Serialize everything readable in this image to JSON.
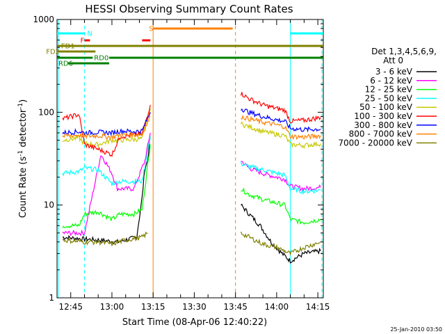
{
  "chart_data": {
    "type": "line",
    "title": "HESSI Observing Summary Count Rates",
    "xlabel": "Start Time (08-Apr-06 12:40:22)",
    "ylabel_main": "Count Rate (s",
    "ylabel_sup": "-1",
    "ylabel_rest": " detector",
    "ylabel_sup2": "-1",
    "ylabel_close": ")",
    "yscale": "log",
    "ylim": [
      1,
      1000
    ],
    "xlim": [
      "12:40",
      "14:17"
    ],
    "yticks": [
      {
        "value": 1,
        "label": "1"
      },
      {
        "value": 10,
        "label": "10"
      },
      {
        "value": 100,
        "label": "100"
      },
      {
        "value": 1000,
        "label": "1000"
      }
    ],
    "xticks": [
      {
        "value": "12:45",
        "label": "12:45"
      },
      {
        "value": "13:00",
        "label": "13:00"
      },
      {
        "value": "13:15",
        "label": "13:15"
      },
      {
        "value": "13:30",
        "label": "13:30"
      },
      {
        "value": "13:45",
        "label": "13:45"
      },
      {
        "value": "14:00",
        "label": "14:00"
      },
      {
        "value": "14:15",
        "label": "14:15"
      }
    ],
    "legend": {
      "placement": "right",
      "header_line1": "Det 1,3,4,5,6,9,",
      "header_line2": "Att 0"
    },
    "series": [
      {
        "name": "3 - 6 keV",
        "color": "#000000",
        "segments": [
          [
            [
              "12:42",
              4.5
            ],
            [
              "12:50",
              4.3
            ],
            [
              "12:55",
              4.2
            ],
            [
              "13:02",
              4.0
            ],
            [
              "13:09",
              4.5
            ],
            [
              "13:11",
              12
            ],
            [
              "13:12",
              25
            ],
            [
              "13:13",
              30
            ],
            [
              "13:14",
              55
            ]
          ],
          [
            [
              "13:47",
              10
            ],
            [
              "13:50",
              8
            ],
            [
              "13:54",
              6
            ],
            [
              "13:58",
              4
            ],
            [
              "14:02",
              3
            ],
            [
              "14:05",
              2.5
            ],
            [
              "14:10",
              3
            ],
            [
              "14:16",
              3.2
            ]
          ]
        ]
      },
      {
        "name": "6 - 12 keV",
        "color": "#ff00ff",
        "segments": [
          [
            [
              "12:42",
              5
            ],
            [
              "12:50",
              5
            ],
            [
              "12:56",
              35
            ],
            [
              "12:58",
              28
            ],
            [
              "13:00",
              22
            ],
            [
              "13:02",
              15
            ],
            [
              "13:08",
              15
            ],
            [
              "13:12",
              30
            ],
            [
              "13:14",
              60
            ]
          ],
          [
            [
              "13:47",
              30
            ],
            [
              "13:50",
              25
            ],
            [
              "13:55",
              22
            ],
            [
              "14:00",
              20
            ],
            [
              "14:03",
              19
            ],
            [
              "14:05",
              16
            ],
            [
              "14:10",
              15
            ],
            [
              "14:16",
              15.5
            ]
          ]
        ]
      },
      {
        "name": "12 - 25 keV",
        "color": "#00ff00",
        "segments": [
          [
            [
              "12:42",
              6
            ],
            [
              "12:48",
              6
            ],
            [
              "12:50",
              8
            ],
            [
              "12:55",
              8.5
            ],
            [
              "13:00",
              7
            ],
            [
              "13:03",
              8
            ],
            [
              "13:08",
              8
            ],
            [
              "13:11",
              9
            ],
            [
              "13:14",
              45
            ]
          ],
          [
            [
              "13:47",
              15
            ],
            [
              "13:50",
              13
            ],
            [
              "13:55",
              11.5
            ],
            [
              "14:00",
              10.5
            ],
            [
              "14:03",
              10
            ],
            [
              "14:05",
              7
            ],
            [
              "14:10",
              6.5
            ],
            [
              "14:16",
              7
            ]
          ]
        ]
      },
      {
        "name": "25 - 50 keV",
        "color": "#00ffff",
        "segments": [
          [
            [
              "12:42",
              22
            ],
            [
              "12:48",
              23
            ],
            [
              "12:50",
              25
            ],
            [
              "12:55",
              24
            ],
            [
              "13:00",
              17
            ],
            [
              "13:03",
              18
            ],
            [
              "13:08",
              18
            ],
            [
              "13:11",
              18
            ],
            [
              "13:14",
              55
            ]
          ],
          [
            [
              "13:47",
              28
            ],
            [
              "13:50",
              26
            ],
            [
              "13:55",
              24
            ],
            [
              "14:00",
              22
            ],
            [
              "14:03",
              21
            ],
            [
              "14:05",
              15
            ],
            [
              "14:10",
              14
            ],
            [
              "14:16",
              14.5
            ]
          ]
        ]
      },
      {
        "name": "50 - 100 keV",
        "color": "#c8c800",
        "segments": [
          [
            [
              "12:42",
              50
            ],
            [
              "12:48",
              53
            ],
            [
              "12:50",
              46
            ],
            [
              "12:55",
              45
            ],
            [
              "13:00",
              50
            ],
            [
              "13:03",
              50
            ],
            [
              "13:08",
              51
            ],
            [
              "13:11",
              52
            ],
            [
              "13:14",
              110
            ]
          ],
          [
            [
              "13:47",
              75
            ],
            [
              "13:50",
              70
            ],
            [
              "13:55",
              62
            ],
            [
              "14:00",
              58
            ],
            [
              "14:03",
              56
            ],
            [
              "14:05",
              45
            ],
            [
              "14:10",
              44
            ],
            [
              "14:16",
              46
            ]
          ]
        ]
      },
      {
        "name": "100 - 300 keV",
        "color": "#ff0000",
        "segments": [
          [
            [
              "12:42",
              85
            ],
            [
              "12:48",
              95
            ],
            [
              "12:50",
              45
            ],
            [
              "12:55",
              40
            ],
            [
              "13:00",
              35
            ],
            [
              "13:03",
              55
            ],
            [
              "13:08",
              57
            ],
            [
              "13:11",
              58
            ],
            [
              "13:14",
              120
            ]
          ],
          [
            [
              "13:47",
              160
            ],
            [
              "13:50",
              140
            ],
            [
              "13:55",
              120
            ],
            [
              "14:00",
              110
            ],
            [
              "14:03",
              105
            ],
            [
              "14:05",
              80
            ],
            [
              "14:10",
              82
            ],
            [
              "14:16",
              88
            ]
          ]
        ]
      },
      {
        "name": "300 - 800 keV",
        "color": "#0000ff",
        "segments": [
          [
            [
              "12:42",
              60
            ],
            [
              "12:48",
              62
            ],
            [
              "12:50",
              60
            ],
            [
              "12:55",
              61
            ],
            [
              "13:00",
              60
            ],
            [
              "13:03",
              63
            ],
            [
              "13:08",
              62
            ],
            [
              "13:11",
              63
            ],
            [
              "13:14",
              100
            ]
          ],
          [
            [
              "13:47",
              110
            ],
            [
              "13:50",
              100
            ],
            [
              "13:55",
              90
            ],
            [
              "14:00",
              83
            ],
            [
              "14:03",
              80
            ],
            [
              "14:05",
              67
            ],
            [
              "14:10",
              65
            ],
            [
              "14:16",
              66
            ]
          ]
        ]
      },
      {
        "name": "800 - 7000 keV",
        "color": "#ff8000",
        "segments": [
          [
            [
              "12:42",
              55
            ],
            [
              "12:48",
              57
            ],
            [
              "12:50",
              55
            ],
            [
              "12:55",
              56
            ],
            [
              "13:00",
              54
            ],
            [
              "13:03",
              57
            ],
            [
              "13:08",
              57
            ],
            [
              "13:11",
              58
            ],
            [
              "13:14",
              90
            ]
          ],
          [
            [
              "13:47",
              90
            ],
            [
              "13:50",
              85
            ],
            [
              "13:55",
              78
            ],
            [
              "14:00",
              73
            ],
            [
              "14:03",
              70
            ],
            [
              "14:05",
              55
            ],
            [
              "14:10",
              54
            ],
            [
              "14:16",
              56
            ]
          ]
        ]
      },
      {
        "name": "7000 - 20000 keV",
        "color": "#808000",
        "segments": [
          [
            [
              "12:42",
              4.2
            ],
            [
              "12:50",
              4.0
            ],
            [
              "12:55",
              4.0
            ],
            [
              "13:00",
              3.8
            ],
            [
              "13:05",
              4.2
            ],
            [
              "13:11",
              4.5
            ],
            [
              "13:13",
              5
            ]
          ],
          [
            [
              "13:47",
              5
            ],
            [
              "13:50",
              4.5
            ],
            [
              "13:55",
              3.8
            ],
            [
              "14:00",
              3.5
            ],
            [
              "14:05",
              3
            ],
            [
              "14:10",
              3.5
            ],
            [
              "14:16",
              4
            ]
          ]
        ]
      }
    ],
    "flag_bars": [
      {
        "label": "N",
        "color": "#00ffff",
        "y": 48,
        "ranges": [
          [
            "12:40",
            "12:50"
          ],
          [
            "14:05",
            "14:17"
          ]
        ],
        "label_at": "12:51"
      },
      {
        "label": "F",
        "color": "#ff0000",
        "y": 58,
        "ranges": [
          [
            "12:50",
            "12:52"
          ],
          [
            "13:11",
            "13:14"
          ]
        ],
        "label_at": "12:48.5"
      },
      {
        "label": "S",
        "color": "#ff8000",
        "y": 41,
        "ranges": [
          [
            "13:15",
            "13:44"
          ]
        ],
        "label_at": "13:13.5"
      },
      {
        "label": "FD1",
        "color": "#808000",
        "y": 66,
        "ranges": [
          [
            "12:40",
            "14:17"
          ]
        ],
        "label_at": "12:41.5"
      },
      {
        "label": "FD2",
        "color": "#808000",
        "y": 74,
        "ranges": [
          [
            "12:40",
            "12:54"
          ]
        ],
        "label_at": "12:36"
      },
      {
        "label": "RD0",
        "color": "#008000",
        "y": 83,
        "ranges": [
          [
            "12:40",
            "12:53"
          ],
          [
            "12:59",
            "14:17"
          ]
        ],
        "label_at": "12:53.5"
      },
      {
        "label": "RD6",
        "color": "#008000",
        "y": 91,
        "ranges": [
          [
            "12:44",
            "12:59"
          ]
        ],
        "label_at": "12:40.5"
      }
    ],
    "vlines": [
      {
        "x": "12:40.5",
        "color": "#00ffff",
        "dashed": false
      },
      {
        "x": "12:50",
        "color": "#00ffff",
        "dashed": true
      },
      {
        "x": "13:15",
        "color": "#ff8000",
        "dashed": false
      },
      {
        "x": "13:45",
        "color": "#ff8000",
        "dashed": true
      },
      {
        "x": "14:05",
        "color": "#00ffff",
        "dashed": false
      },
      {
        "x": "14:16.5",
        "color": "#00ffff",
        "dashed": true
      }
    ],
    "timestamp": "25-Jan-2010 03:50"
  }
}
